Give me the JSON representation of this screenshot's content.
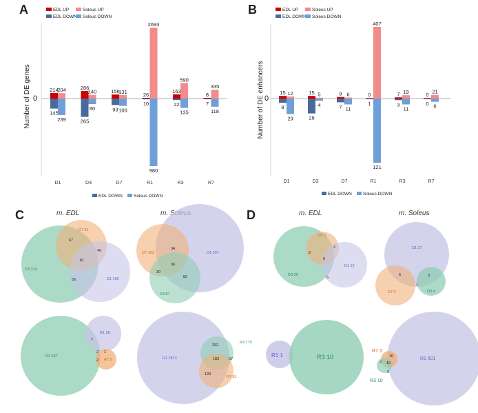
{
  "colors": {
    "edl_up": "#cc0000",
    "soleus_up": "#f28b8b",
    "edl_down": "#4a6a9a",
    "soleus_down": "#6f9fd8",
    "green": "#8fcdb4",
    "orange": "#f0b07a",
    "purple": "#c6c4e6"
  },
  "panel_letters": {
    "a": "A",
    "b": "B",
    "c": "C",
    "d": "D"
  },
  "chart_data": [
    {
      "type": "bar",
      "panel": "A",
      "ylabel": "Number of DE genes",
      "zero_label": "0",
      "categories": [
        "D1",
        "D3",
        "D7",
        "R1",
        "R3",
        "R7"
      ],
      "series": [
        {
          "name": "EDL UP",
          "values": [
            214,
            286,
            156,
            26,
            163,
            8
          ]
        },
        {
          "name": "Soleus UP",
          "values": [
            204,
            140,
            131,
            2693,
            590,
            335
          ]
        },
        {
          "name": "EDL DOWN",
          "values": [
            145,
            265,
            93,
            10,
            22,
            7
          ]
        },
        {
          "name": "Soleus DOWN",
          "values": [
            239,
            80,
            106,
            980,
            135,
            118
          ]
        }
      ],
      "legend_top": [
        "EDL UP",
        "Soleus UP",
        "EDL DOWN",
        "Soleus DOWN"
      ],
      "legend_bottom": [
        "EDL DOWN",
        "Soleus DOWN"
      ]
    },
    {
      "type": "bar",
      "panel": "B",
      "ylabel": "Number of DE enhancers",
      "zero_label": "0",
      "categories": [
        "D1",
        "D3",
        "D7",
        "R1",
        "R3",
        "R7"
      ],
      "series": [
        {
          "name": "EDL UP",
          "values": [
            15,
            15,
            9,
            0,
            7,
            0
          ]
        },
        {
          "name": "Soleus UP",
          "values": [
            12,
            5,
            6,
            407,
            19,
            21
          ]
        },
        {
          "name": "EDL DOWN",
          "values": [
            8,
            28,
            7,
            1,
            3,
            0
          ]
        },
        {
          "name": "Soleus DOWN",
          "values": [
            29,
            4,
            11,
            121,
            11,
            6
          ]
        }
      ],
      "legend_top": [
        "EDL UP",
        "Soleus UP",
        "EDL DOWN",
        "Soleus DOWN"
      ],
      "legend_bottom": [
        "EDL DOWN",
        "Soleus DOWN"
      ]
    }
  ],
  "venn_c": {
    "edl_title": "m. EDL",
    "soleus_title": "m. Soleus",
    "edl_top": {
      "d3": "D3 314",
      "d7": "D7 81",
      "d1": "D1 166",
      "n_d3_d7": "67",
      "n_d1_d7": "49",
      "n_all": "81",
      "n_d1_d3": "56"
    },
    "soleus_top": {
      "d7": "D7 103",
      "d1": "D1 307",
      "d3": "D3 87",
      "n_d1_d7": "34",
      "n_all": "36",
      "n_d3_d7": "30",
      "n_d1_d3": "82"
    },
    "edl_bottom": {
      "r3": "R3 587",
      "r1": "R1 28",
      "r7": "R7 5",
      "n_r1_r3": "7",
      "n_r3_r7": "2",
      "n_all": "2",
      "n_r1_r7": "1"
    },
    "soleus_bottom": {
      "r1": "R1 2874",
      "r3": "R3 170",
      "r7": "R7 81",
      "n_r1_r3": "292",
      "n_all": "183",
      "n_r3_r7": "57",
      "n_r1_r7": "133"
    }
  },
  "venn_d": {
    "edl_title": "m. EDL",
    "soleus_title": "m. Soleus",
    "edl_top": {
      "d7": "D7 3",
      "d3": "D3 20",
      "d1": "D1 12",
      "n_d3_d7": "2",
      "n_d1_d7": "2",
      "n_all": "5",
      "n_d1_d3": "5"
    },
    "soleus_top": {
      "d1": "D1 27",
      "d7": "D7 9",
      "d3": "D3 4",
      "n_d1_d7": "5",
      "n_all": "1",
      "n_d1_d3": "3"
    },
    "edl_bottom": {
      "r1": "R1 1",
      "r3": "R3 10"
    },
    "soleus_bottom": {
      "r7": "R7 3",
      "r1": "R1 501",
      "r3": "R3 10",
      "n_r1_r7": "10",
      "n_r3_r7": "3",
      "n_all": "10",
      "n_r1_r3": "6"
    }
  }
}
